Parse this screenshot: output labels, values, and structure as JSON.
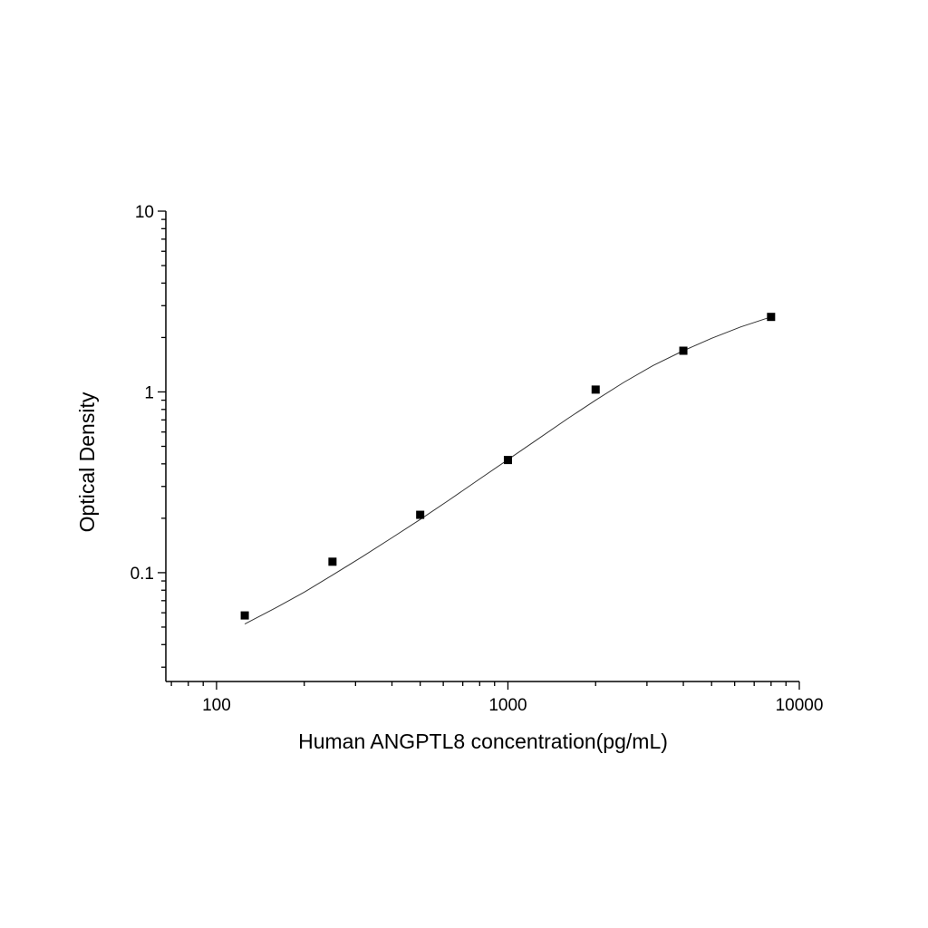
{
  "chart_data": {
    "type": "scatter",
    "title": "",
    "xlabel": "Human ANGPTL8 concentration(pg/mL)",
    "ylabel": "Optical Density",
    "x_scale": "log",
    "y_scale": "log",
    "xlim": [
      67,
      10000
    ],
    "ylim": [
      0.025,
      10
    ],
    "x_ticks": [
      {
        "value": 100,
        "label": "100"
      },
      {
        "value": 1000,
        "label": "1000"
      },
      {
        "value": 10000,
        "label": "10000"
      }
    ],
    "y_ticks": [
      {
        "value": 0.1,
        "label": "0.1"
      },
      {
        "value": 1,
        "label": "1"
      },
      {
        "value": 10,
        "label": "10"
      }
    ],
    "grid": false,
    "legend": "none",
    "marker_color": "#000000",
    "curve_color": "#333333",
    "series": [
      {
        "points": [
          {
            "x": 125,
            "y": 0.058
          },
          {
            "x": 250,
            "y": 0.115
          },
          {
            "x": 500,
            "y": 0.209
          },
          {
            "x": 1000,
            "y": 0.42
          },
          {
            "x": 2000,
            "y": 1.03
          },
          {
            "x": 4000,
            "y": 1.69
          },
          {
            "x": 8000,
            "y": 2.6
          }
        ]
      }
    ],
    "fit_curve": {
      "model": "four-parameter logistic",
      "x_range": [
        125,
        8000
      ],
      "points": [
        {
          "x": 125,
          "y": 0.052
        },
        {
          "x": 160,
          "y": 0.064
        },
        {
          "x": 200,
          "y": 0.078
        },
        {
          "x": 250,
          "y": 0.097
        },
        {
          "x": 315,
          "y": 0.122
        },
        {
          "x": 400,
          "y": 0.156
        },
        {
          "x": 500,
          "y": 0.197
        },
        {
          "x": 630,
          "y": 0.253
        },
        {
          "x": 800,
          "y": 0.33
        },
        {
          "x": 1000,
          "y": 0.422
        },
        {
          "x": 1260,
          "y": 0.545
        },
        {
          "x": 1600,
          "y": 0.71
        },
        {
          "x": 2000,
          "y": 0.9
        },
        {
          "x": 2500,
          "y": 1.13
        },
        {
          "x": 3150,
          "y": 1.4
        },
        {
          "x": 4000,
          "y": 1.69
        },
        {
          "x": 5000,
          "y": 1.98
        },
        {
          "x": 6300,
          "y": 2.29
        },
        {
          "x": 8000,
          "y": 2.6
        }
      ]
    }
  }
}
